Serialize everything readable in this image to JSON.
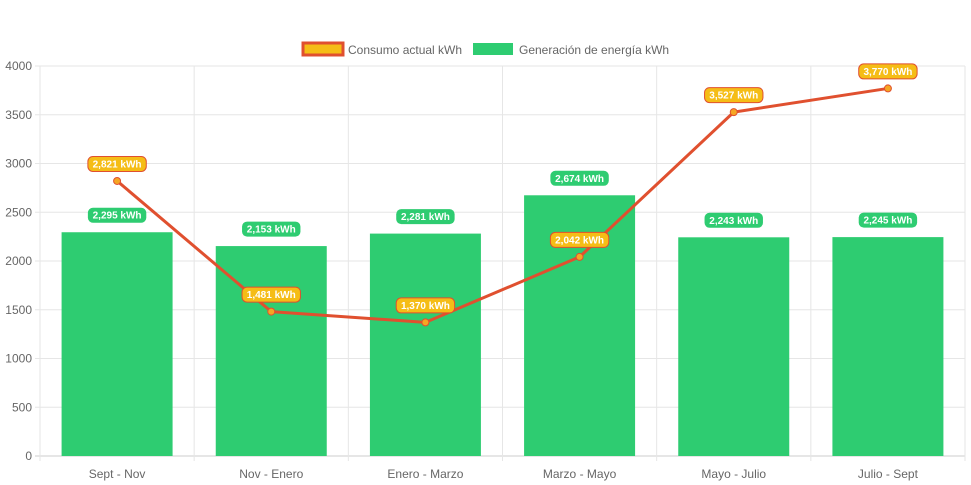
{
  "chart_data": {
    "type": "bar",
    "categories": [
      "Sept - Nov",
      "Nov - Enero",
      "Enero - Marzo",
      "Marzo - Mayo",
      "Mayo - Julio",
      "Julio - Sept"
    ],
    "ylim": [
      0,
      4000
    ],
    "yticks": [
      0,
      500,
      1000,
      1500,
      2000,
      2500,
      3000,
      3500,
      4000
    ],
    "grid": true,
    "legend_position": "top",
    "series": [
      {
        "name": "Consumo actual kWh",
        "kind": "line",
        "values": [
          2821,
          1481,
          1370,
          2042,
          3527,
          3770
        ],
        "labels": [
          "2,821 kWh",
          "1,481 kWh",
          "1,370 kWh",
          "2,042 kWh",
          "3,527 kWh",
          "3,770 kWh"
        ],
        "line_color": "#e0502f",
        "label_color": "#f5bd16"
      },
      {
        "name": "Generación de energía kWh",
        "kind": "bar",
        "values": [
          2295,
          2153,
          2281,
          2674,
          2243,
          2245
        ],
        "labels": [
          "2,295 kWh",
          "2,153 kWh",
          "2,281 kWh",
          "2,674 kWh",
          "2,243 kWh",
          "2,245 kWh"
        ],
        "color": "#2ecc71"
      }
    ]
  }
}
